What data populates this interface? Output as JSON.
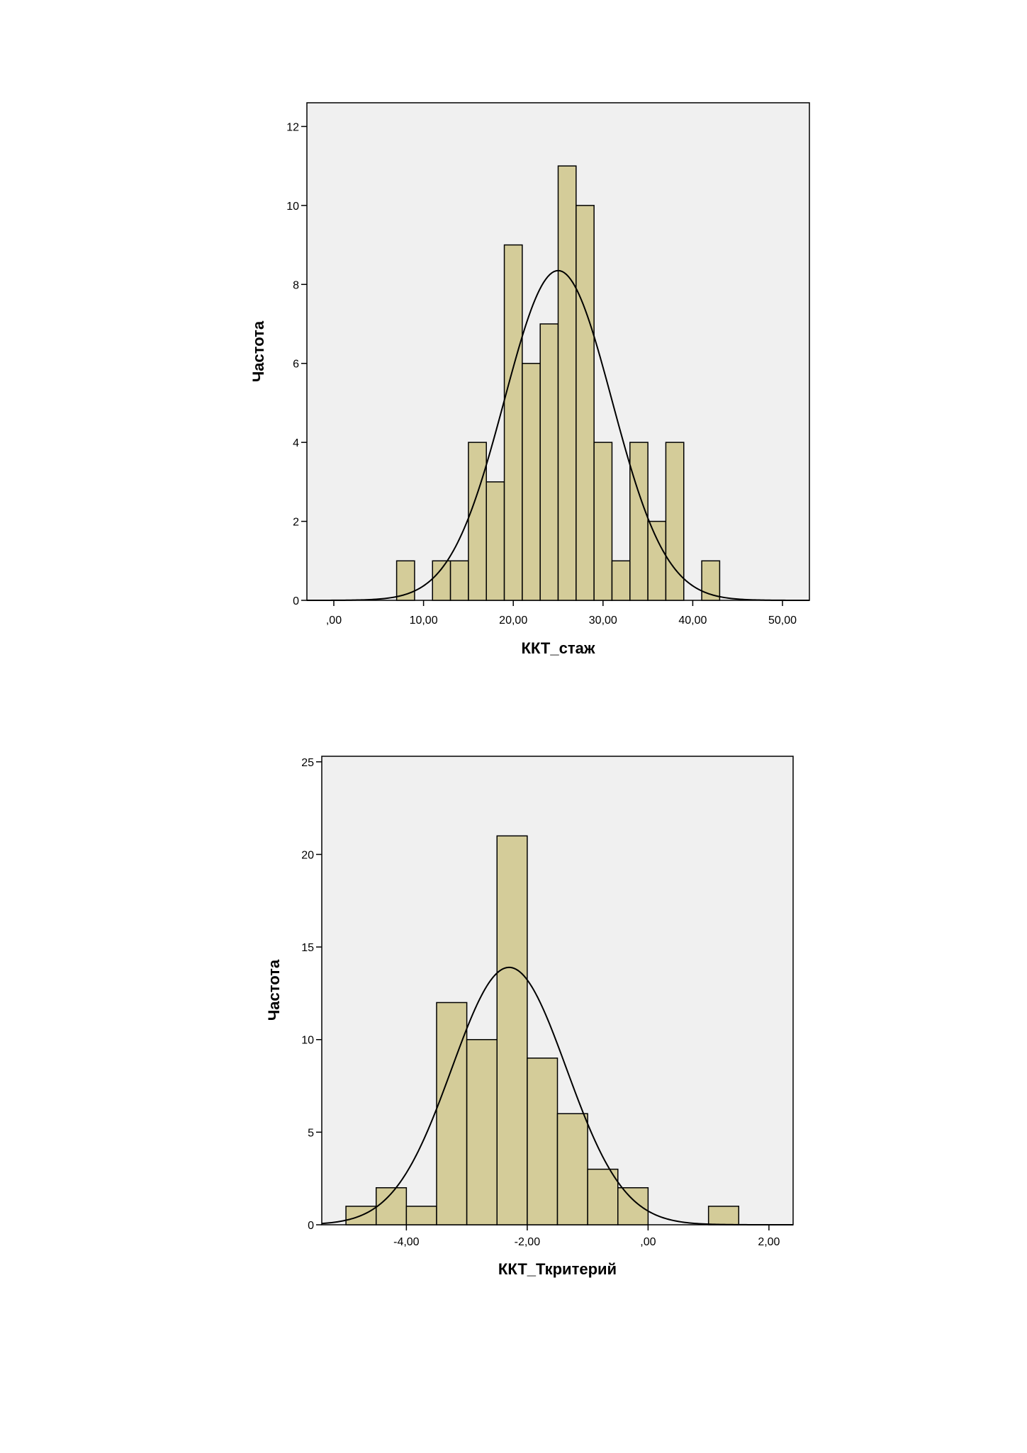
{
  "chart_data": [
    {
      "type": "bar",
      "subtype": "histogram",
      "xlabel": "ККТ_стаж",
      "ylabel": "Частота",
      "xlim": [
        -3,
        53
      ],
      "ylim": [
        0,
        12.6
      ],
      "x_ticks": [
        0,
        10,
        20,
        30,
        40,
        50
      ],
      "x_tick_labels": [
        ",00",
        "10,00",
        "20,00",
        "30,00",
        "40,00",
        "50,00"
      ],
      "y_ticks": [
        0,
        2,
        4,
        6,
        8,
        10,
        12
      ],
      "y_tick_labels": [
        "0",
        "2",
        "4",
        "6",
        "8",
        "10",
        "12"
      ],
      "bins": [
        {
          "x0": 7,
          "x1": 9,
          "count": 1
        },
        {
          "x0": 11,
          "x1": 13,
          "count": 1
        },
        {
          "x0": 13,
          "x1": 15,
          "count": 1
        },
        {
          "x0": 15,
          "x1": 17,
          "count": 4
        },
        {
          "x0": 17,
          "x1": 19,
          "count": 3
        },
        {
          "x0": 19,
          "x1": 21,
          "count": 9
        },
        {
          "x0": 21,
          "x1": 23,
          "count": 6
        },
        {
          "x0": 23,
          "x1": 25,
          "count": 7
        },
        {
          "x0": 25,
          "x1": 27,
          "count": 11
        },
        {
          "x0": 27,
          "x1": 29,
          "count": 10
        },
        {
          "x0": 29,
          "x1": 31,
          "count": 4
        },
        {
          "x0": 31,
          "x1": 33,
          "count": 1
        },
        {
          "x0": 33,
          "x1": 35,
          "count": 4
        },
        {
          "x0": 35,
          "x1": 37,
          "count": 2
        },
        {
          "x0": 37,
          "x1": 39,
          "count": 4
        },
        {
          "x0": 41,
          "x1": 43,
          "count": 1
        }
      ],
      "normal_curve": {
        "mean": 25.0,
        "sd": 6.0,
        "peak": 8.35
      },
      "grid": false,
      "colors": {
        "bar_fill": "#d4cc99",
        "bar_stroke": "#000000",
        "plot_bg": "#f0f0f0",
        "curve": "#000000"
      }
    },
    {
      "type": "bar",
      "subtype": "histogram",
      "xlabel": "ККТ_Ткритерий",
      "ylabel": "Частота",
      "xlim": [
        -5.4,
        2.4
      ],
      "ylim": [
        0,
        25.3
      ],
      "x_ticks": [
        -4,
        -2,
        0,
        2
      ],
      "x_tick_labels": [
        "-4,00",
        "-2,00",
        ",00",
        "2,00"
      ],
      "y_ticks": [
        0,
        5,
        10,
        15,
        20,
        25
      ],
      "y_tick_labels": [
        "0",
        "5",
        "10",
        "15",
        "20",
        "25"
      ],
      "bins": [
        {
          "x0": -5.0,
          "x1": -4.5,
          "count": 1
        },
        {
          "x0": -4.5,
          "x1": -4.0,
          "count": 2
        },
        {
          "x0": -4.0,
          "x1": -3.5,
          "count": 1
        },
        {
          "x0": -3.5,
          "x1": -3.0,
          "count": 12
        },
        {
          "x0": -3.0,
          "x1": -2.5,
          "count": 10
        },
        {
          "x0": -2.5,
          "x1": -2.0,
          "count": 21
        },
        {
          "x0": -2.0,
          "x1": -1.5,
          "count": 9
        },
        {
          "x0": -1.5,
          "x1": -1.0,
          "count": 6
        },
        {
          "x0": -1.0,
          "x1": -0.5,
          "count": 3
        },
        {
          "x0": -0.5,
          "x1": 0.0,
          "count": 2
        },
        {
          "x0": 1.0,
          "x1": 1.5,
          "count": 1
        }
      ],
      "normal_curve": {
        "mean": -2.3,
        "sd": 0.95,
        "peak": 13.9
      },
      "grid": false,
      "colors": {
        "bar_fill": "#d4cc99",
        "bar_stroke": "#000000",
        "plot_bg": "#f0f0f0",
        "curve": "#000000"
      }
    }
  ]
}
